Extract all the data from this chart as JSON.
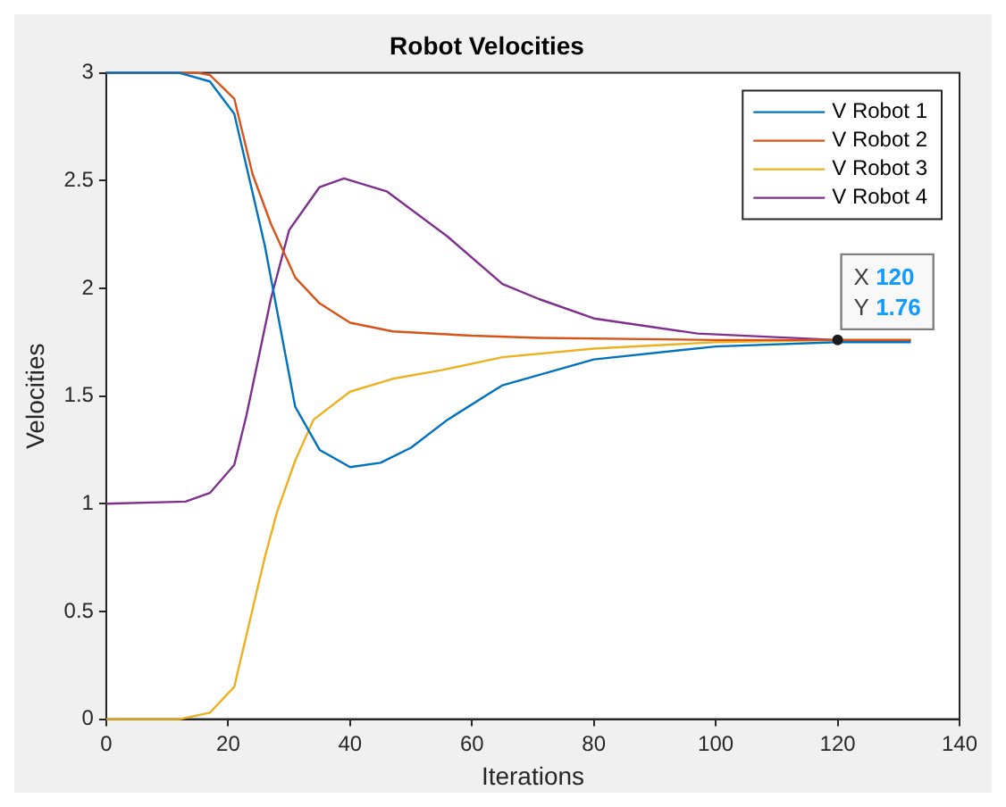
{
  "chart_data": {
    "type": "line",
    "title": "Robot Velocities",
    "xlabel": "Iterations",
    "ylabel": "Velocities",
    "xlim": [
      0,
      140
    ],
    "xticks": [
      0,
      20,
      40,
      60,
      80,
      100,
      120,
      140
    ],
    "ylim": [
      0,
      3
    ],
    "yticks": [
      0,
      0.5,
      1,
      1.5,
      2,
      2.5,
      3
    ],
    "grid": false,
    "legend": "top right",
    "marker": "none",
    "line_style": "solid",
    "annotations": [
      {
        "text": "X 120\nY 1.76",
        "x": 120,
        "y": 1.76
      }
    ],
    "series": [
      {
        "name": "V Robot 1",
        "color": "#0072bd",
        "x": [
          0,
          12,
          17,
          21,
          26,
          31,
          35,
          40,
          45,
          50,
          56,
          65,
          80,
          100,
          120,
          132
        ],
        "values": [
          3,
          3,
          2.96,
          2.81,
          2.2,
          1.45,
          1.25,
          1.17,
          1.19,
          1.26,
          1.39,
          1.55,
          1.67,
          1.73,
          1.75,
          1.75
        ]
      },
      {
        "name": "V Robot 2",
        "color": "#d95319",
        "x": [
          0,
          15,
          17,
          21,
          24,
          27,
          31,
          35,
          40,
          47,
          60,
          71,
          100,
          120,
          132
        ],
        "values": [
          3,
          3,
          2.99,
          2.88,
          2.53,
          2.3,
          2.05,
          1.93,
          1.84,
          1.8,
          1.78,
          1.77,
          1.76,
          1.76,
          1.76
        ]
      },
      {
        "name": "V Robot 3",
        "color": "#edb120",
        "x": [
          0,
          12,
          17,
          21,
          24,
          26,
          28,
          31,
          34,
          40,
          47,
          55,
          65,
          80,
          100,
          120,
          132
        ],
        "values": [
          0,
          0,
          0.03,
          0.15,
          0.51,
          0.75,
          0.96,
          1.2,
          1.39,
          1.52,
          1.58,
          1.62,
          1.68,
          1.72,
          1.75,
          1.76,
          1.76
        ]
      },
      {
        "name": "V Robot 4",
        "color": "#7e2f8e",
        "x": [
          0,
          13,
          17,
          21,
          23,
          25,
          27,
          30,
          35,
          39,
          46,
          56,
          65,
          71,
          80,
          97,
          120,
          132
        ],
        "values": [
          1,
          1.01,
          1.05,
          1.18,
          1.41,
          1.68,
          1.95,
          2.27,
          2.47,
          2.51,
          2.45,
          2.24,
          2.02,
          1.95,
          1.86,
          1.79,
          1.76,
          1.76
        ]
      }
    ]
  }
}
